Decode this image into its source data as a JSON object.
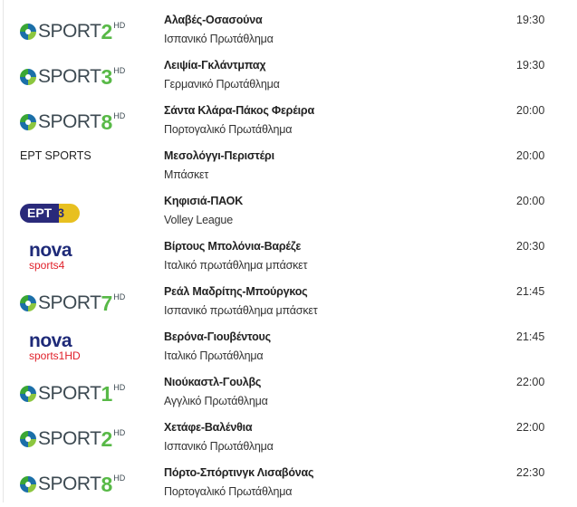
{
  "colors": {
    "sport_green": "#58b947",
    "sport_blue": "#1b6fa8",
    "nova_blue": "#1e2a78",
    "nova_red": "#e0202a",
    "ert_navy": "#2a2a7a",
    "ert_yellow": "#e8c020"
  },
  "rows": [
    {
      "channel": {
        "type": "cosmote",
        "brand": "SPORT",
        "num": "2",
        "hd": "HD"
      },
      "title": "Αλαβές-Οσασούνα",
      "sub": "Ισπανικό Πρωτάθλημα",
      "time": "19:30"
    },
    {
      "channel": {
        "type": "cosmote",
        "brand": "SPORT",
        "num": "3",
        "hd": "HD"
      },
      "title": "Λειψία-Γκλάντμπαχ",
      "sub": "Γερμανικό Πρωτάθλημα",
      "time": "19:30"
    },
    {
      "channel": {
        "type": "cosmote",
        "brand": "SPORT",
        "num": "8",
        "hd": "HD"
      },
      "title": "Σάντα Κλάρα-Πάκος Φερέιρα",
      "sub": "Πορτογαλικό Πρωτάθλημα",
      "time": "20:00"
    },
    {
      "channel": {
        "type": "text",
        "name": "ΕΡΤ SPORTS"
      },
      "title": "Μεσολόγγι-Περιστέρι",
      "sub": "Μπάσκετ",
      "time": "20:00"
    },
    {
      "channel": {
        "type": "ert",
        "brand": "ΕΡΤ",
        "num": "3"
      },
      "title": "Κηφισιά-ΠΑΟΚ",
      "sub": "Volley League",
      "time": "20:00"
    },
    {
      "channel": {
        "type": "nova",
        "brand": "nova",
        "sub": "sports4"
      },
      "title": "Βίρτους Μπολόνια-Βαρέζε",
      "sub": "Ιταλικό πρωτάθλημα μπάσκετ",
      "time": "20:30"
    },
    {
      "channel": {
        "type": "cosmote",
        "brand": "SPORT",
        "num": "7",
        "hd": "HD"
      },
      "title": "Ρεάλ Μαδρίτης-Μπούργκος",
      "sub": "Ισπανικό πρωτάθλημα μπάσκετ",
      "time": "21:45"
    },
    {
      "channel": {
        "type": "nova",
        "brand": "nova",
        "sub": "sports1HD"
      },
      "title": "Βερόνα-Γιουβέντους",
      "sub": "Ιταλικό Πρωτάθλημα",
      "time": "21:45"
    },
    {
      "channel": {
        "type": "cosmote",
        "brand": "SPORT",
        "num": "1",
        "hd": "HD"
      },
      "title": "Νιούκαστλ-Γουλβς",
      "sub": "Αγγλικό Πρωτάθλημα",
      "time": "22:00"
    },
    {
      "channel": {
        "type": "cosmote",
        "brand": "SPORT",
        "num": "2",
        "hd": "HD"
      },
      "title": "Χετάφε-Βαλένθια",
      "sub": "Ισπανικό Πρωτάθλημα",
      "time": "22:00"
    },
    {
      "channel": {
        "type": "cosmote",
        "brand": "SPORT",
        "num": "8",
        "hd": "HD"
      },
      "title": "Πόρτο-Σπόρτινγκ Λισαβόνας",
      "sub": "Πορτογαλικό Πρωτάθλημα",
      "time": "22:30"
    }
  ]
}
